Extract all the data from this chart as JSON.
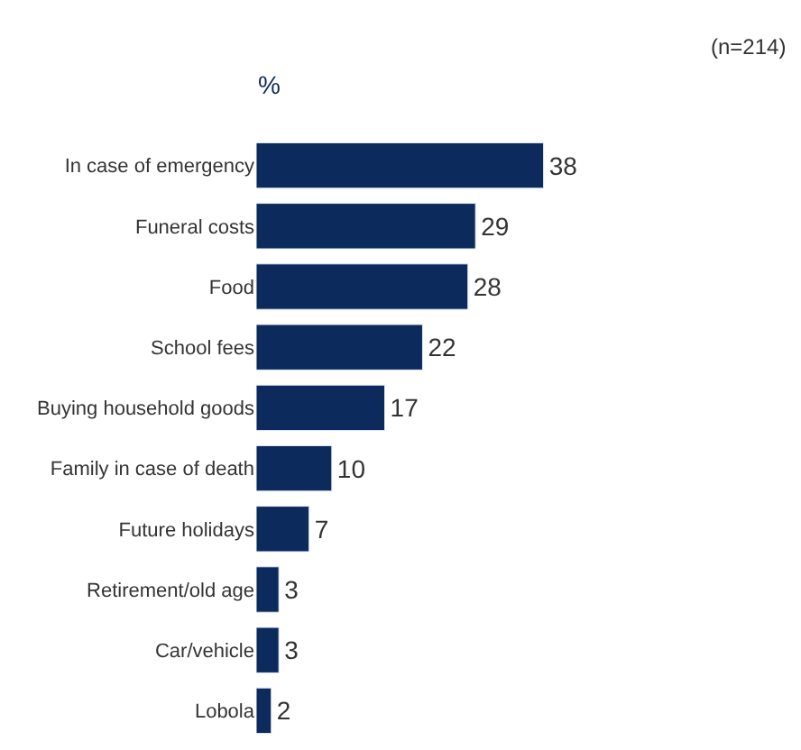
{
  "chart_data": {
    "type": "bar",
    "orientation": "horizontal",
    "data_labels": true,
    "tick_labels": "y",
    "categories": [
      "In case of emergency",
      "Funeral costs",
      "Food",
      "School fees",
      "Buying household goods",
      "Family in case of death",
      "Future holidays",
      "Retirement/old age",
      "Car/vehicle",
      "Lobola"
    ],
    "values": [
      38,
      29,
      28,
      22,
      17,
      10,
      7,
      3,
      3,
      2
    ],
    "color": "#0c2a5c",
    "annotations": [
      "%",
      "(n=214)"
    ]
  }
}
